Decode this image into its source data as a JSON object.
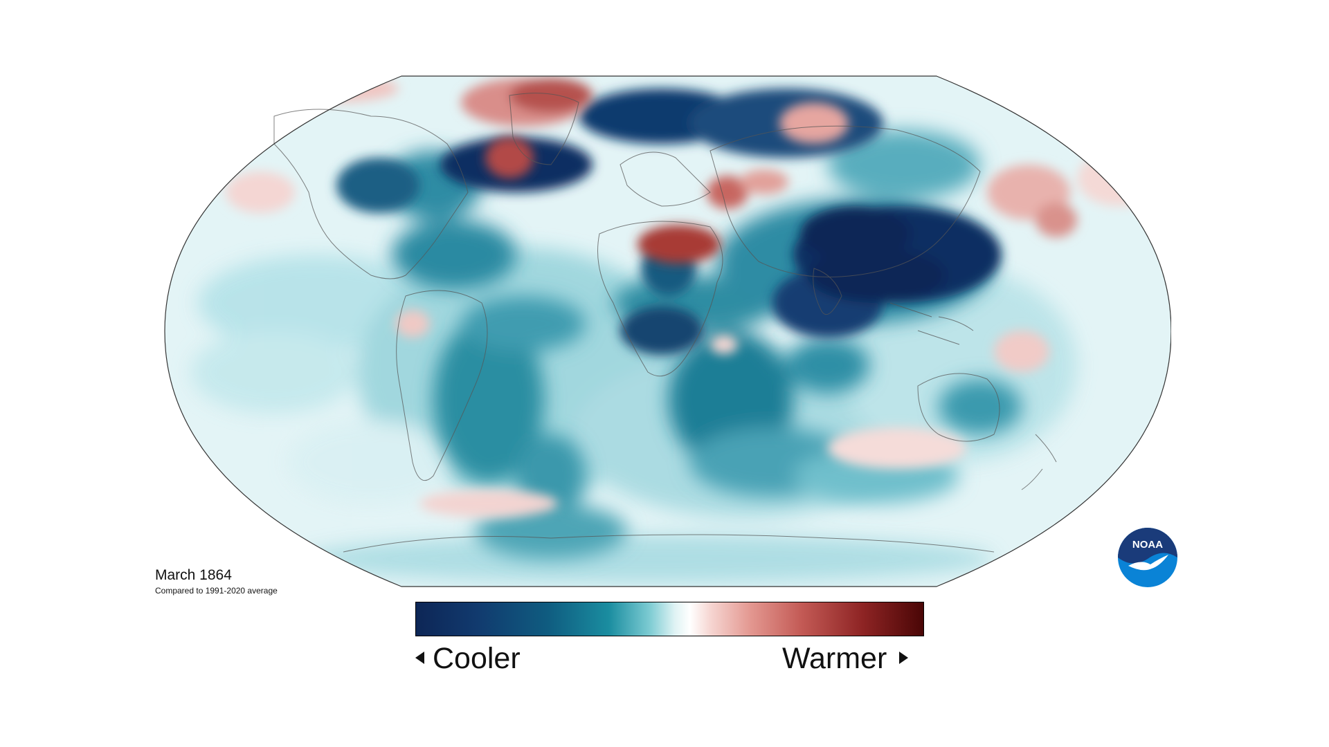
{
  "map": {
    "title": "March 1864",
    "subtitle": "Compared to 1991-2020 average",
    "projection": "Robinson",
    "variable": "temperature anomaly",
    "colors": {
      "coldest": "#0d2656",
      "cool": "#1a8da0",
      "neutral": "#ffffff",
      "warm": "#e39790",
      "warmest": "#4a0606",
      "coastline": "#555555"
    }
  },
  "legend": {
    "cooler_label": "Cooler",
    "warmer_label": "Warmer",
    "left_arrow_icon": "triangle-left-icon",
    "right_arrow_icon": "triangle-right-icon"
  },
  "logo": {
    "text": "NOAA",
    "icon": "noaa-logo-icon",
    "colors": {
      "top": "#1a3b7a",
      "bottom": "#0a83d6",
      "bird": "#ffffff"
    }
  }
}
